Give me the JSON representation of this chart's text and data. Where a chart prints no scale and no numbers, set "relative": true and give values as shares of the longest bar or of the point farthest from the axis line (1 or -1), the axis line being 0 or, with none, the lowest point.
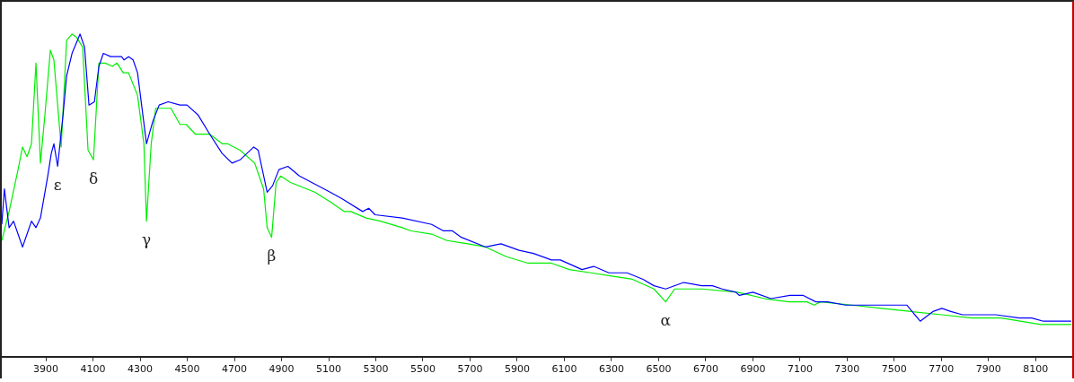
{
  "chart_data": {
    "type": "line",
    "relative": true,
    "xlim": [
      3713,
      8255
    ],
    "xticks": [
      3900,
      4100,
      4300,
      4500,
      4700,
      4900,
      5100,
      5300,
      5500,
      5700,
      5900,
      6100,
      6300,
      6500,
      6700,
      6900,
      7100,
      7300,
      7500,
      7700,
      7900,
      8100
    ],
    "grid": false,
    "legend": false,
    "marker": "none",
    "line_style": "solid",
    "series": [
      {
        "color": "#0000ff",
        "x": [
          3713,
          3724,
          3744,
          3763,
          3801,
          3839,
          3858,
          3877,
          3908,
          3923,
          3934,
          3950,
          3973,
          3988,
          4011,
          4045,
          4064,
          4083,
          4106,
          4125,
          4144,
          4175,
          4221,
          4232,
          4251,
          4270,
          4289,
          4327,
          4354,
          4381,
          4419,
          4469,
          4499,
          4545,
          4595,
          4648,
          4690,
          4724,
          4782,
          4801,
          4839,
          4862,
          4889,
          4927,
          4976,
          5106,
          5156,
          5244,
          5270,
          5297,
          5412,
          5537,
          5587,
          5625,
          5663,
          5766,
          5831,
          5908,
          5969,
          6045,
          6083,
          6175,
          6225,
          6289,
          6366,
          6434,
          6480,
          6530,
          6606,
          6683,
          6728,
          6770,
          6828,
          6843,
          6900,
          6977,
          7057,
          7114,
          7167,
          7217,
          7293,
          7332,
          7396,
          7446,
          7496,
          7553,
          7610,
          7664,
          7702,
          7740,
          7790,
          7839,
          7931,
          8030,
          8083,
          8133,
          8251
        ],
        "values": [
          0.41,
          0.52,
          0.4,
          0.42,
          0.34,
          0.42,
          0.4,
          0.43,
          0.56,
          0.63,
          0.66,
          0.59,
          0.75,
          0.87,
          0.94,
          1.0,
          0.96,
          0.78,
          0.79,
          0.9,
          0.94,
          0.93,
          0.93,
          0.92,
          0.93,
          0.92,
          0.88,
          0.66,
          0.73,
          0.78,
          0.79,
          0.78,
          0.78,
          0.75,
          0.69,
          0.63,
          0.6,
          0.61,
          0.65,
          0.64,
          0.51,
          0.53,
          0.58,
          0.59,
          0.56,
          0.51,
          0.49,
          0.45,
          0.46,
          0.44,
          0.43,
          0.41,
          0.39,
          0.39,
          0.37,
          0.34,
          0.35,
          0.33,
          0.32,
          0.3,
          0.3,
          0.27,
          0.28,
          0.26,
          0.26,
          0.24,
          0.22,
          0.21,
          0.23,
          0.22,
          0.22,
          0.21,
          0.2,
          0.19,
          0.2,
          0.18,
          0.19,
          0.19,
          0.17,
          0.17,
          0.16,
          0.16,
          0.16,
          0.16,
          0.16,
          0.16,
          0.11,
          0.14,
          0.15,
          0.14,
          0.13,
          0.13,
          0.13,
          0.12,
          0.12,
          0.11,
          0.11
        ]
      },
      {
        "color": "#00ee00",
        "x": [
          3713,
          3744,
          3782,
          3801,
          3820,
          3839,
          3858,
          3877,
          3896,
          3919,
          3934,
          3965,
          3988,
          4011,
          4030,
          4056,
          4079,
          4102,
          4125,
          4152,
          4182,
          4202,
          4228,
          4251,
          4289,
          4316,
          4327,
          4347,
          4366,
          4431,
          4469,
          4495,
          4534,
          4595,
          4648,
          4671,
          4724,
          4786,
          4824,
          4839,
          4858,
          4877,
          4896,
          4938,
          5041,
          5106,
          5167,
          5194,
          5259,
          5320,
          5412,
          5450,
          5537,
          5602,
          5690,
          5766,
          5854,
          5946,
          6045,
          6121,
          6213,
          6301,
          6389,
          6480,
          6530,
          6568,
          6683,
          6835,
          6950,
          7053,
          7129,
          7160,
          7187,
          7320,
          7446,
          7572,
          7702,
          7828,
          7954,
          8121,
          8251
        ],
        "values": [
          0.36,
          0.45,
          0.58,
          0.65,
          0.62,
          0.66,
          0.91,
          0.6,
          0.75,
          0.95,
          0.92,
          0.65,
          0.98,
          1.0,
          0.99,
          0.96,
          0.64,
          0.61,
          0.91,
          0.91,
          0.9,
          0.91,
          0.88,
          0.88,
          0.81,
          0.66,
          0.42,
          0.66,
          0.77,
          0.77,
          0.72,
          0.72,
          0.69,
          0.69,
          0.66,
          0.66,
          0.64,
          0.6,
          0.52,
          0.4,
          0.37,
          0.54,
          0.56,
          0.54,
          0.51,
          0.48,
          0.45,
          0.45,
          0.43,
          0.42,
          0.4,
          0.39,
          0.38,
          0.36,
          0.35,
          0.34,
          0.31,
          0.29,
          0.29,
          0.27,
          0.26,
          0.25,
          0.24,
          0.21,
          0.17,
          0.21,
          0.21,
          0.2,
          0.18,
          0.17,
          0.17,
          0.16,
          0.17,
          0.16,
          0.15,
          0.14,
          0.13,
          0.12,
          0.12,
          0.1,
          0.1
        ]
      }
    ],
    "annotations": [
      {
        "text": "ε",
        "x": 3950,
        "y": 0.59
      },
      {
        "text": "δ",
        "x": 4102,
        "y": 0.61
      },
      {
        "text": "γ",
        "x": 4327,
        "y": 0.42
      },
      {
        "text": "β",
        "x": 4858,
        "y": 0.37
      },
      {
        "text": "α",
        "x": 6530,
        "y": 0.17
      }
    ]
  }
}
